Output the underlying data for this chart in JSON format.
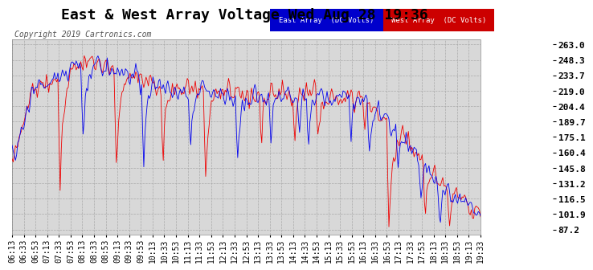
{
  "title": "East & West Array Voltage Wed Aug 28 19:36",
  "copyright": "Copyright 2019 Cartronics.com",
  "legend_labels": [
    "East Array  (DC Volts)",
    "West Array  (DC Volts)"
  ],
  "legend_blue_bg": "#0000cc",
  "legend_red_bg": "#cc0000",
  "line_blue": "#0000ee",
  "line_red": "#ee0000",
  "plot_bg": "#d8d8d8",
  "outer_bg": "#ffffff",
  "grid_color": "#aaaaaa",
  "yticks": [
    87.2,
    101.9,
    116.5,
    131.2,
    145.8,
    160.4,
    175.1,
    189.7,
    204.4,
    219.0,
    233.7,
    248.3,
    263.0
  ],
  "ylim": [
    82.0,
    268.0
  ],
  "xtick_labels": [
    "06:13",
    "06:33",
    "06:53",
    "07:13",
    "07:33",
    "07:53",
    "08:13",
    "08:33",
    "08:53",
    "09:13",
    "09:33",
    "09:53",
    "10:13",
    "10:33",
    "10:53",
    "11:13",
    "11:33",
    "11:53",
    "12:13",
    "12:33",
    "12:53",
    "13:13",
    "13:33",
    "13:53",
    "14:13",
    "14:33",
    "14:53",
    "15:13",
    "15:33",
    "15:53",
    "16:13",
    "16:33",
    "16:53",
    "17:13",
    "17:33",
    "17:53",
    "18:13",
    "18:33",
    "18:53",
    "19:13",
    "19:33"
  ],
  "title_fontsize": 13,
  "copyright_fontsize": 7,
  "tick_fontsize": 7,
  "ytick_fontsize": 8
}
